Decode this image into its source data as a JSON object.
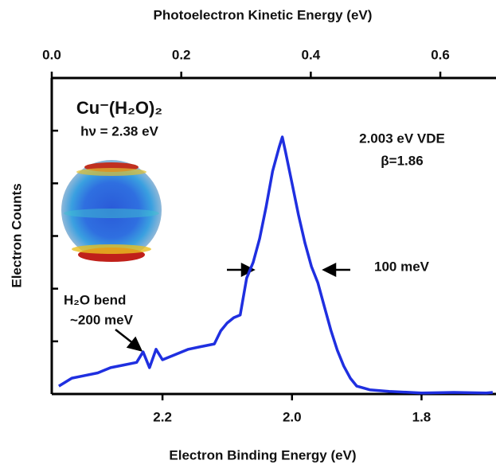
{
  "chart_data": {
    "type": "line",
    "xlabel": "Electron Binding Energy (eV)",
    "x2label": "Photoelectron Kinetic Energy (eV)",
    "ylabel": "Electron Counts",
    "xlim": [
      2.371,
      1.685
    ],
    "xticks": [
      2.2,
      {
        "value": 2,
        "label": "2.0"
      },
      1.8
    ],
    "x2lim": [
      0,
      0.686
    ],
    "x2ticks": [
      {
        "value": 0,
        "label": "0.0"
      },
      0.2,
      0.4,
      0.6
    ],
    "ylim": [
      0,
      6
    ],
    "yticks": [
      0,
      1,
      2,
      3,
      4,
      5,
      6
    ],
    "x": [
      2.36,
      2.34,
      2.32,
      2.3,
      2.28,
      2.26,
      2.24,
      2.23,
      2.22,
      2.21,
      2.2,
      2.18,
      2.16,
      2.14,
      2.12,
      2.11,
      2.1,
      2.09,
      2.08,
      2.07,
      2.06,
      2.05,
      2.04,
      2.03,
      2.02,
      2.015,
      2.01,
      2.0,
      1.99,
      1.98,
      1.97,
      1.96,
      1.95,
      1.94,
      1.93,
      1.92,
      1.91,
      1.9,
      1.88,
      1.85,
      1.8,
      1.75,
      1.7,
      1.69
    ],
    "series": [
      {
        "name": "Cu⁻(H₂O)₂",
        "color": "#1f2fe0",
        "values": [
          0.15,
          0.3,
          0.35,
          0.4,
          0.5,
          0.55,
          0.6,
          0.8,
          0.5,
          0.85,
          0.65,
          0.75,
          0.85,
          0.9,
          0.95,
          1.2,
          1.35,
          1.45,
          1.5,
          2.2,
          2.5,
          2.95,
          3.55,
          4.23,
          4.68,
          4.88,
          4.6,
          4.0,
          3.4,
          2.87,
          2.42,
          2.11,
          1.66,
          1.21,
          0.83,
          0.53,
          0.3,
          0.15,
          0.08,
          0.05,
          0.02,
          0.03,
          0.02,
          0.03
        ]
      }
    ],
    "annotations": {
      "species": "Cu⁻(H₂O)₂",
      "photon": "hν = 2.38 eV",
      "vde": "2.003 eV VDE",
      "beta": "β=1.86",
      "fwhm": "100 meV",
      "bend": "H₂O bend",
      "bend_energy": "~200 meV"
    }
  }
}
